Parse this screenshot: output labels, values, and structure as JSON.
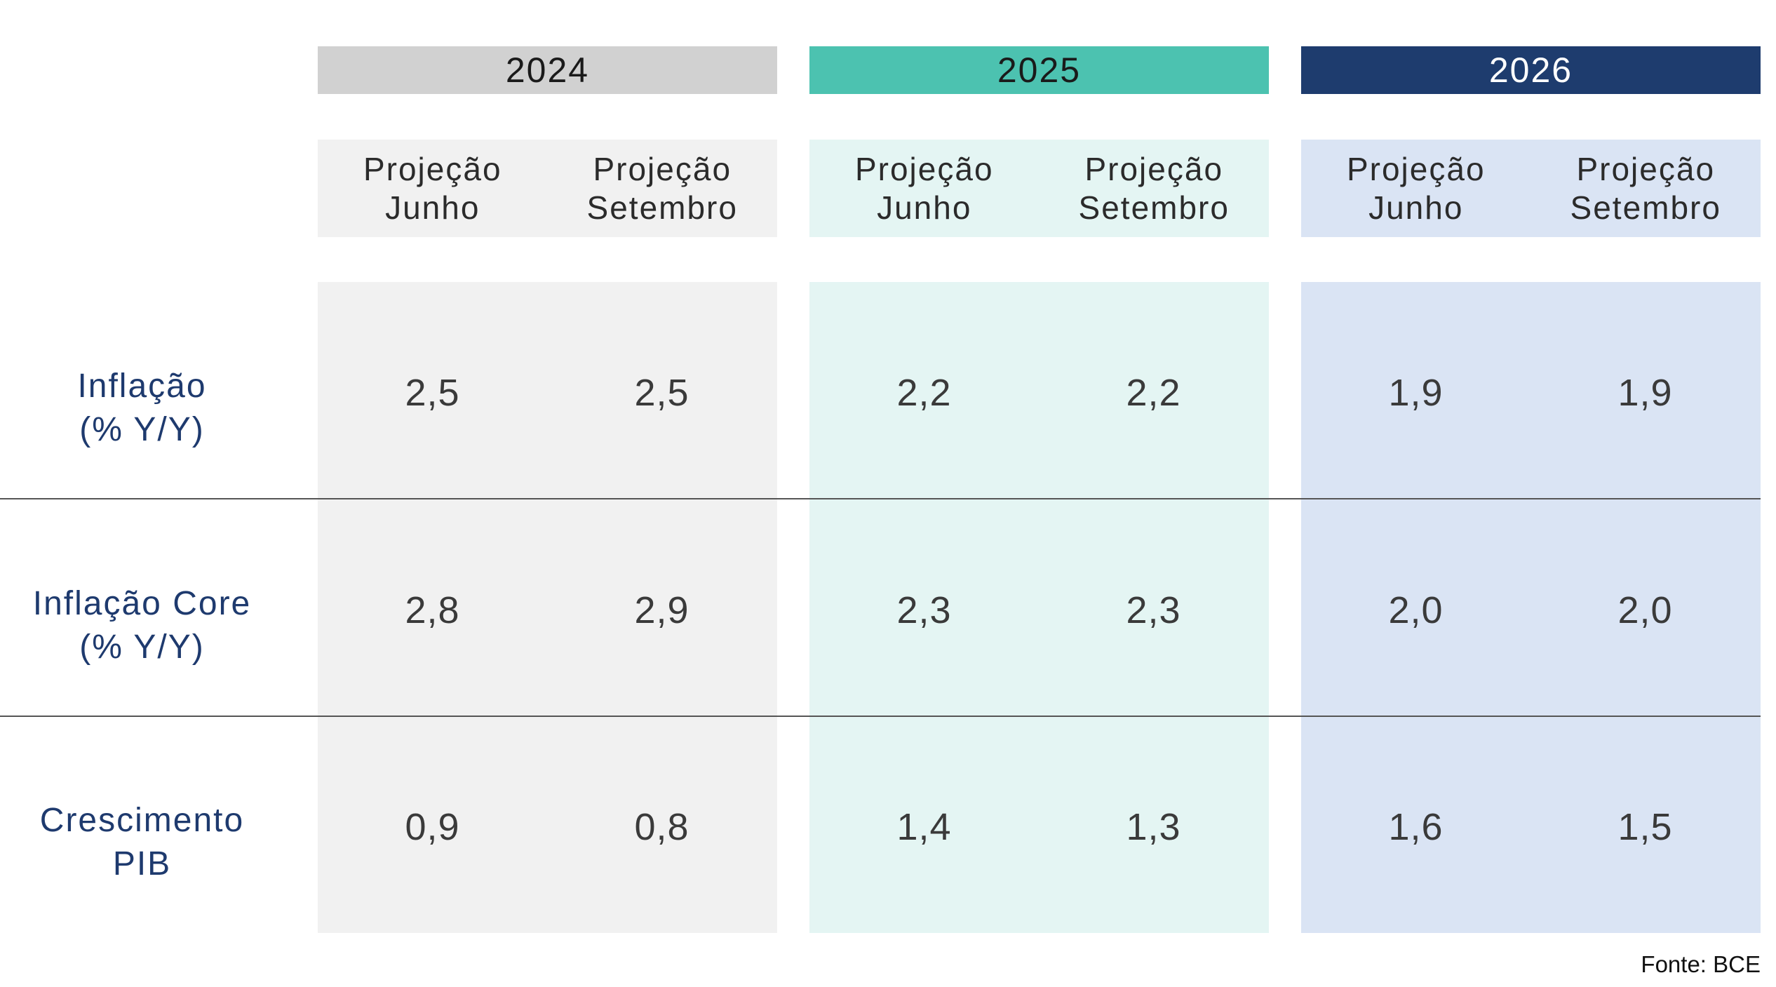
{
  "chart_data": {
    "type": "table",
    "years": [
      {
        "label": "2024",
        "header_bg": "#d1d1d1",
        "header_fg": "#1a1a1a",
        "body_bg": "#f1f1f1"
      },
      {
        "label": "2025",
        "header_bg": "#4cc2b0",
        "header_fg": "#1a1a1a",
        "body_bg": "#e4f5f3"
      },
      {
        "label": "2026",
        "header_bg": "#1e3c6e",
        "header_fg": "#ffffff",
        "body_bg": "#dae4f4"
      }
    ],
    "subheaders": [
      {
        "line1": "Projeção",
        "line2": "Junho"
      },
      {
        "line1": "Projeção",
        "line2": "Setembro"
      }
    ],
    "rows": [
      {
        "label_line1": "Inflação",
        "label_line2": "(% Y/Y)",
        "values": [
          "2,5",
          "2,5",
          "2,2",
          "2,2",
          "1,9",
          "1,9"
        ]
      },
      {
        "label_line1": "Inflação Core",
        "label_line2": "(% Y/Y)",
        "values": [
          "2,8",
          "2,9",
          "2,3",
          "2,3",
          "2,0",
          "2,0"
        ]
      },
      {
        "label_line1": "Crescimento",
        "label_line2": "PIB",
        "values": [
          "0,9",
          "0,8",
          "1,4",
          "1,3",
          "1,6",
          "1,5"
        ]
      }
    ],
    "source": "Fonte: BCE",
    "label_color": "#1e3a6e"
  }
}
